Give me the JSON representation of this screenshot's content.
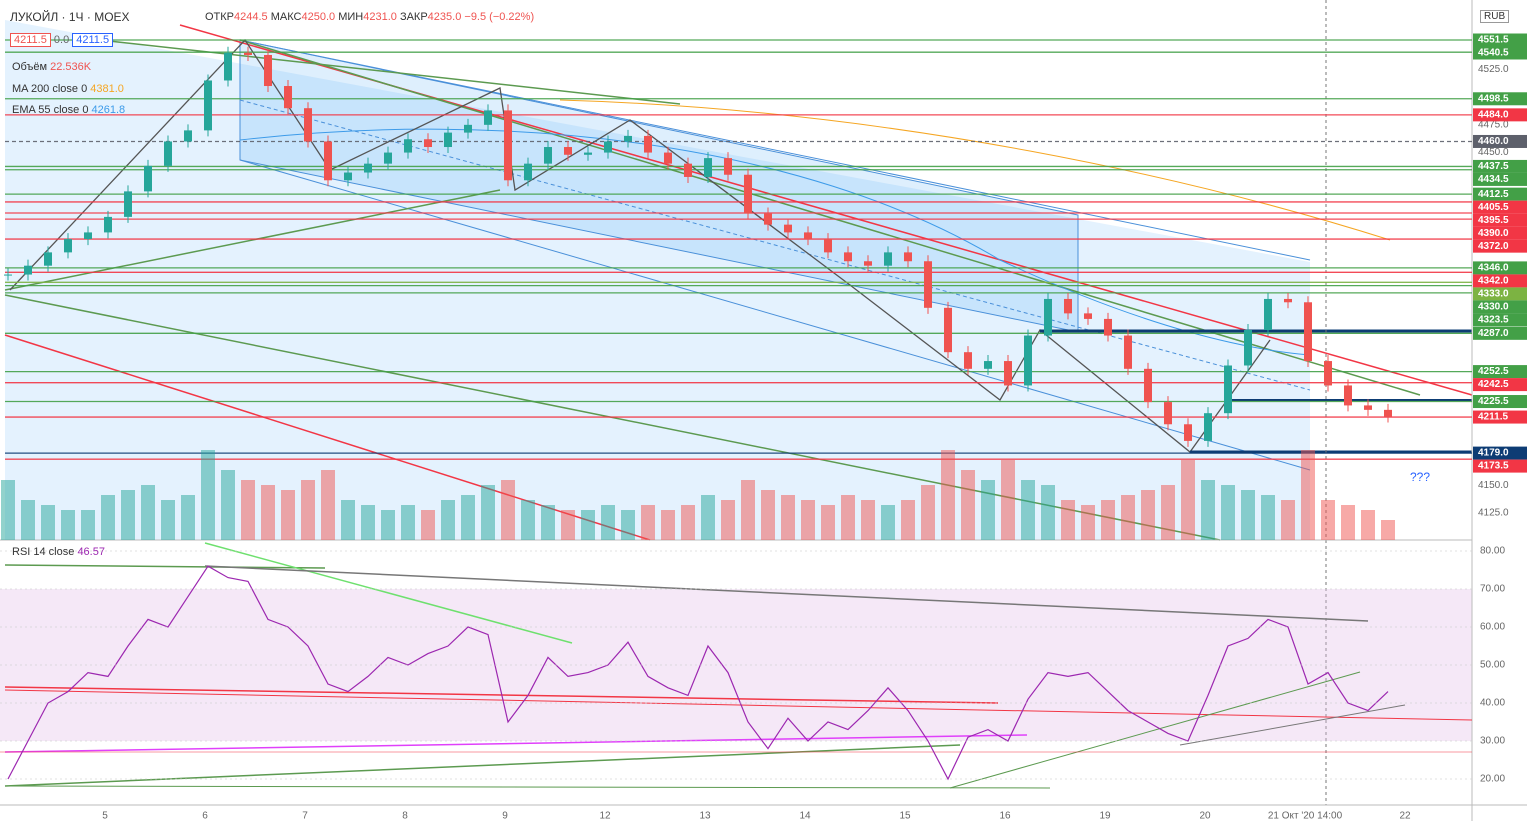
{
  "header": {
    "symbol": "ЛУКОЙЛ",
    "interval": "1Ч",
    "exchange": "MOEX",
    "open_label": "ОТКР",
    "open": "4244.5",
    "high_label": "МАКС",
    "high": "4250.0",
    "low_label": "МИН",
    "low": "4231.0",
    "close_label": "ЗАКР",
    "close": "4235.0",
    "change": "−9.5 (−0.22%)"
  },
  "legend": {
    "bid": "4211.5",
    "spread": "0.0",
    "ask": "4211.5",
    "volume_name": "Объём",
    "volume_value": "22.536K",
    "ma_name": "MA 200 close 0",
    "ma_value": "4381.0",
    "ema_name": "EMA 55 close 0",
    "ema_value": "4261.8",
    "rsi_name": "RSI 14 close",
    "rsi_value": "46.57"
  },
  "currency": "RUB",
  "annotation": "???",
  "price_axis_ticks": [
    "4525.0",
    "4475.0",
    "4450.0",
    "4150.0",
    "4125.0"
  ],
  "price_levels": [
    {
      "label": "4551.5",
      "color": "#43a047"
    },
    {
      "label": "4540.5",
      "color": "#43a047"
    },
    {
      "label": "4498.5",
      "color": "#43a047"
    },
    {
      "label": "4484.0",
      "color": "#f23645"
    },
    {
      "label": "4460.0",
      "color": "#5d606b"
    },
    {
      "label": "4437.5",
      "color": "#43a047"
    },
    {
      "label": "4434.5",
      "color": "#43a047"
    },
    {
      "label": "4412.5",
      "color": "#43a047"
    },
    {
      "label": "4405.5",
      "color": "#f23645"
    },
    {
      "label": "4395.5",
      "color": "#f23645"
    },
    {
      "label": "4390.0",
      "color": "#f23645"
    },
    {
      "label": "4372.0",
      "color": "#f23645"
    },
    {
      "label": "4346.0",
      "color": "#43a047"
    },
    {
      "label": "4342.0",
      "color": "#f23645"
    },
    {
      "label": "4333.0",
      "color": "#7cb342"
    },
    {
      "label": "4330.0",
      "color": "#43a047"
    },
    {
      "label": "4323.5",
      "color": "#43a047"
    },
    {
      "label": "4287.0",
      "color": "#43a047"
    },
    {
      "label": "4252.5",
      "color": "#43a047"
    },
    {
      "label": "4242.5",
      "color": "#f23645"
    },
    {
      "label": "4225.5",
      "color": "#43a047"
    },
    {
      "label": "4211.5",
      "color": "#f23645"
    },
    {
      "label": "4179.0",
      "color": "#0d3c74"
    },
    {
      "label": "4173.5",
      "color": "#f23645"
    }
  ],
  "rsi_axis_ticks": [
    "80.00",
    "70.00",
    "60.00",
    "50.00",
    "40.00",
    "30.00",
    "20.00"
  ],
  "time_axis": [
    "5",
    "6",
    "7",
    "8",
    "9",
    "12",
    "13",
    "14",
    "15",
    "16",
    "19",
    "20",
    "21 Окт '20  14:00",
    "22"
  ],
  "candles": {
    "close": [
      4340,
      4348,
      4360,
      4372,
      4378,
      4392,
      4415,
      4438,
      4460,
      4470,
      4515,
      4540,
      4538,
      4510,
      4490,
      4460,
      4425,
      4432,
      4440,
      4450,
      4462,
      4455,
      4468,
      4475,
      4488,
      4425,
      4440,
      4455,
      4448,
      4450,
      4460,
      4465,
      4450,
      4440,
      4428,
      4445,
      4430,
      4395,
      4385,
      4378,
      4372,
      4360,
      4352,
      4348,
      4360,
      4352,
      4310,
      4270,
      4255,
      4262,
      4240,
      4285,
      4318,
      4305,
      4300,
      4285,
      4255,
      4225,
      4205,
      4190,
      4215,
      4258,
      4290,
      4318,
      4315,
      4262,
      4240,
      4222,
      4218,
      4212
    ],
    "volume": [
      60,
      40,
      35,
      30,
      30,
      45,
      50,
      55,
      40,
      45,
      90,
      70,
      60,
      55,
      50,
      60,
      70,
      40,
      35,
      30,
      35,
      30,
      40,
      45,
      55,
      60,
      40,
      35,
      30,
      30,
      35,
      30,
      35,
      30,
      35,
      45,
      40,
      60,
      50,
      45,
      40,
      35,
      45,
      40,
      35,
      40,
      55,
      90,
      70,
      60,
      80,
      60,
      55,
      40,
      35,
      40,
      45,
      50,
      55,
      80,
      60,
      55,
      50,
      45,
      40,
      90,
      40,
      35,
      30,
      20
    ],
    "rsi": [
      20,
      30,
      40,
      43,
      48,
      47,
      55,
      62,
      60,
      68,
      76,
      73,
      72,
      62,
      60,
      55,
      45,
      43,
      47,
      52,
      50,
      53,
      55,
      60,
      58,
      35,
      42,
      52,
      47,
      48,
      50,
      56,
      47,
      44,
      42,
      55,
      48,
      35,
      28,
      36,
      30,
      35,
      33,
      38,
      44,
      38,
      30,
      20,
      31,
      33,
      30,
      41,
      48,
      47,
      48,
      43,
      38,
      35,
      32,
      30,
      42,
      55,
      57,
      62,
      60,
      45,
      48,
      40,
      38,
      43
    ]
  }
}
